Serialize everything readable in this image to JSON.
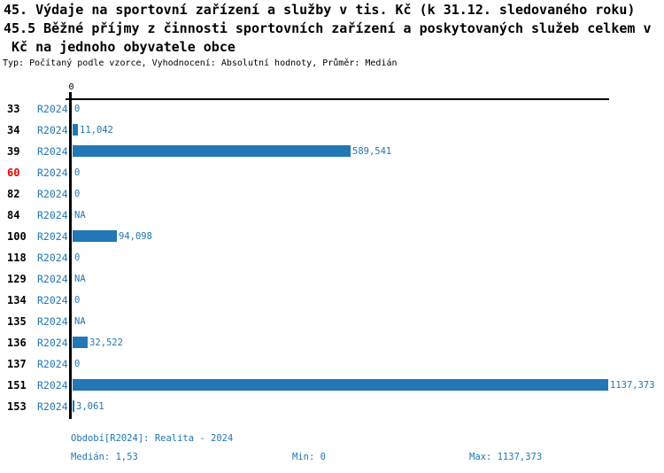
{
  "header": {
    "title_line1": "45. Výdaje na sportovní zařízení a služby v tis. Kč (k 31.12. sledovaného roku)",
    "title_line2": "45.5 Běžné příjmy z činnosti sportovních zařízení a poskytovaných služeb celkem v",
    "title_line3": " Kč na jednoho obyvatele obce",
    "subtitle": "Typ: Počítaný podle vzorce, Vyhodnocení: Absolutní hodnoty, Průměr: Medián"
  },
  "colors": {
    "bar": "#2277b4",
    "value_text": "#2277b4",
    "period_text": "#2277b4",
    "footer_text": "#2277b4",
    "row_id_text": "#000000",
    "row_id_highlight": "#ee0000",
    "axis": "#000000"
  },
  "chart_data": {
    "type": "bar",
    "orientation": "horizontal",
    "title": "45. Výdaje na sportovní zařízení a služby v tis. Kč (k 31.12. sledovaného roku) — 45.5 Běžné příjmy z činnosti sportovních zařízení a poskytovaných služeb celkem v Kč na jednoho obyvatele obce",
    "x_axis": {
      "zero_label": "0",
      "min": 0,
      "max": 1137.373,
      "gridlines": false
    },
    "series_period": "R2024",
    "rows": [
      {
        "id": "33",
        "period": "R2024",
        "value": 0,
        "label": "0",
        "highlight": false
      },
      {
        "id": "34",
        "period": "R2024",
        "value": 11.042,
        "label": "11,042",
        "highlight": false
      },
      {
        "id": "39",
        "period": "R2024",
        "value": 589.541,
        "label": "589,541",
        "highlight": false
      },
      {
        "id": "60",
        "period": "R2024",
        "value": 0,
        "label": "0",
        "highlight": true
      },
      {
        "id": "82",
        "period": "R2024",
        "value": 0,
        "label": "0",
        "highlight": false
      },
      {
        "id": "84",
        "period": "R2024",
        "value": null,
        "label": "NA",
        "highlight": false
      },
      {
        "id": "100",
        "period": "R2024",
        "value": 94.098,
        "label": "94,098",
        "highlight": false
      },
      {
        "id": "118",
        "period": "R2024",
        "value": 0,
        "label": "0",
        "highlight": false
      },
      {
        "id": "129",
        "period": "R2024",
        "value": null,
        "label": "NA",
        "highlight": false
      },
      {
        "id": "134",
        "period": "R2024",
        "value": 0,
        "label": "0",
        "highlight": false
      },
      {
        "id": "135",
        "period": "R2024",
        "value": null,
        "label": "NA",
        "highlight": false
      },
      {
        "id": "136",
        "period": "R2024",
        "value": 32.522,
        "label": "32,522",
        "highlight": false
      },
      {
        "id": "137",
        "period": "R2024",
        "value": 0,
        "label": "0",
        "highlight": false
      },
      {
        "id": "151",
        "period": "R2024",
        "value": 1137.373,
        "label": "1137,373",
        "highlight": false
      },
      {
        "id": "153",
        "period": "R2024",
        "value": 3.061,
        "label": "3,061",
        "highlight": false
      }
    ]
  },
  "footer": {
    "period_caption": "Období[R2024]: Realita - 2024",
    "median": "Medián: 1,53",
    "min": "Min: 0",
    "max": "Max: 1137,373"
  }
}
